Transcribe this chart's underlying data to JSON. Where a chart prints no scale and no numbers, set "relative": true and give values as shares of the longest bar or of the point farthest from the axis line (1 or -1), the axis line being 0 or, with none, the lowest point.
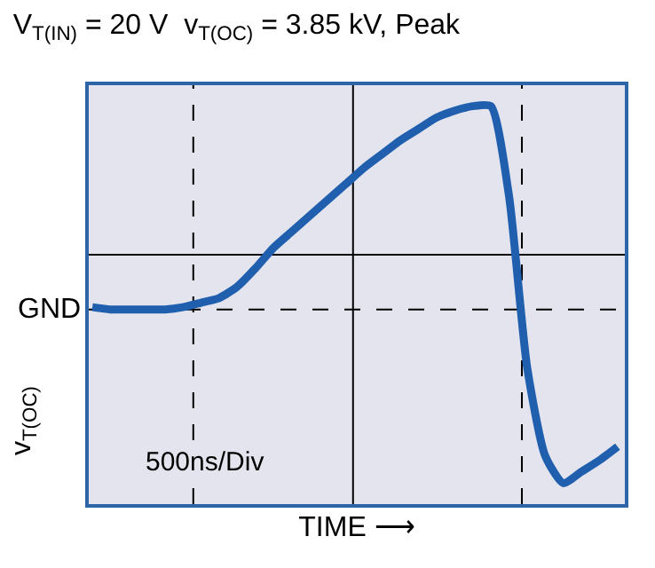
{
  "chart_data": {
    "type": "line",
    "relative": true,
    "title": "V$_{T(IN)}$ = 20 V  v$_{T(OC)}$ = 3.85 kV, Peak",
    "xlabel": "TIME ⟶",
    "ylabel": "v$_{T(OC)}$",
    "categories": [
      null,
      null,
      null,
      null,
      null,
      null,
      null,
      null,
      null,
      null,
      null,
      null,
      null,
      null,
      null,
      null,
      null,
      null,
      null,
      null,
      null,
      null,
      null,
      null,
      null,
      null,
      null,
      null,
      null,
      null
    ],
    "series": [
      {
        "color": "#1f5fae",
        "values": [
          -0.23,
          -0.24,
          -0.24,
          -0.24,
          -0.24,
          -0.23,
          -0.21,
          -0.19,
          -0.14,
          -0.06,
          0.03,
          0.1,
          0.17,
          0.24,
          0.31,
          0.38,
          0.44,
          0.5,
          0.55,
          0.6,
          0.63,
          0.65,
          0.65,
          0.26,
          -0.49,
          -0.88,
          -1,
          -0.95,
          -0.9,
          -0.84
        ]
      }
    ],
    "ref_lines": [
      {
        "axis": "y",
        "value": -0.24,
        "label": "GND",
        "line_style": "dashed",
        "color": "#000000"
      },
      {
        "axis": "y",
        "value": 0,
        "line_style": "solid",
        "color": "#000000"
      }
    ],
    "annotations": [
      "500ns/Div"
    ],
    "grid": false,
    "marker": "none",
    "line_style": "solid"
  }
}
